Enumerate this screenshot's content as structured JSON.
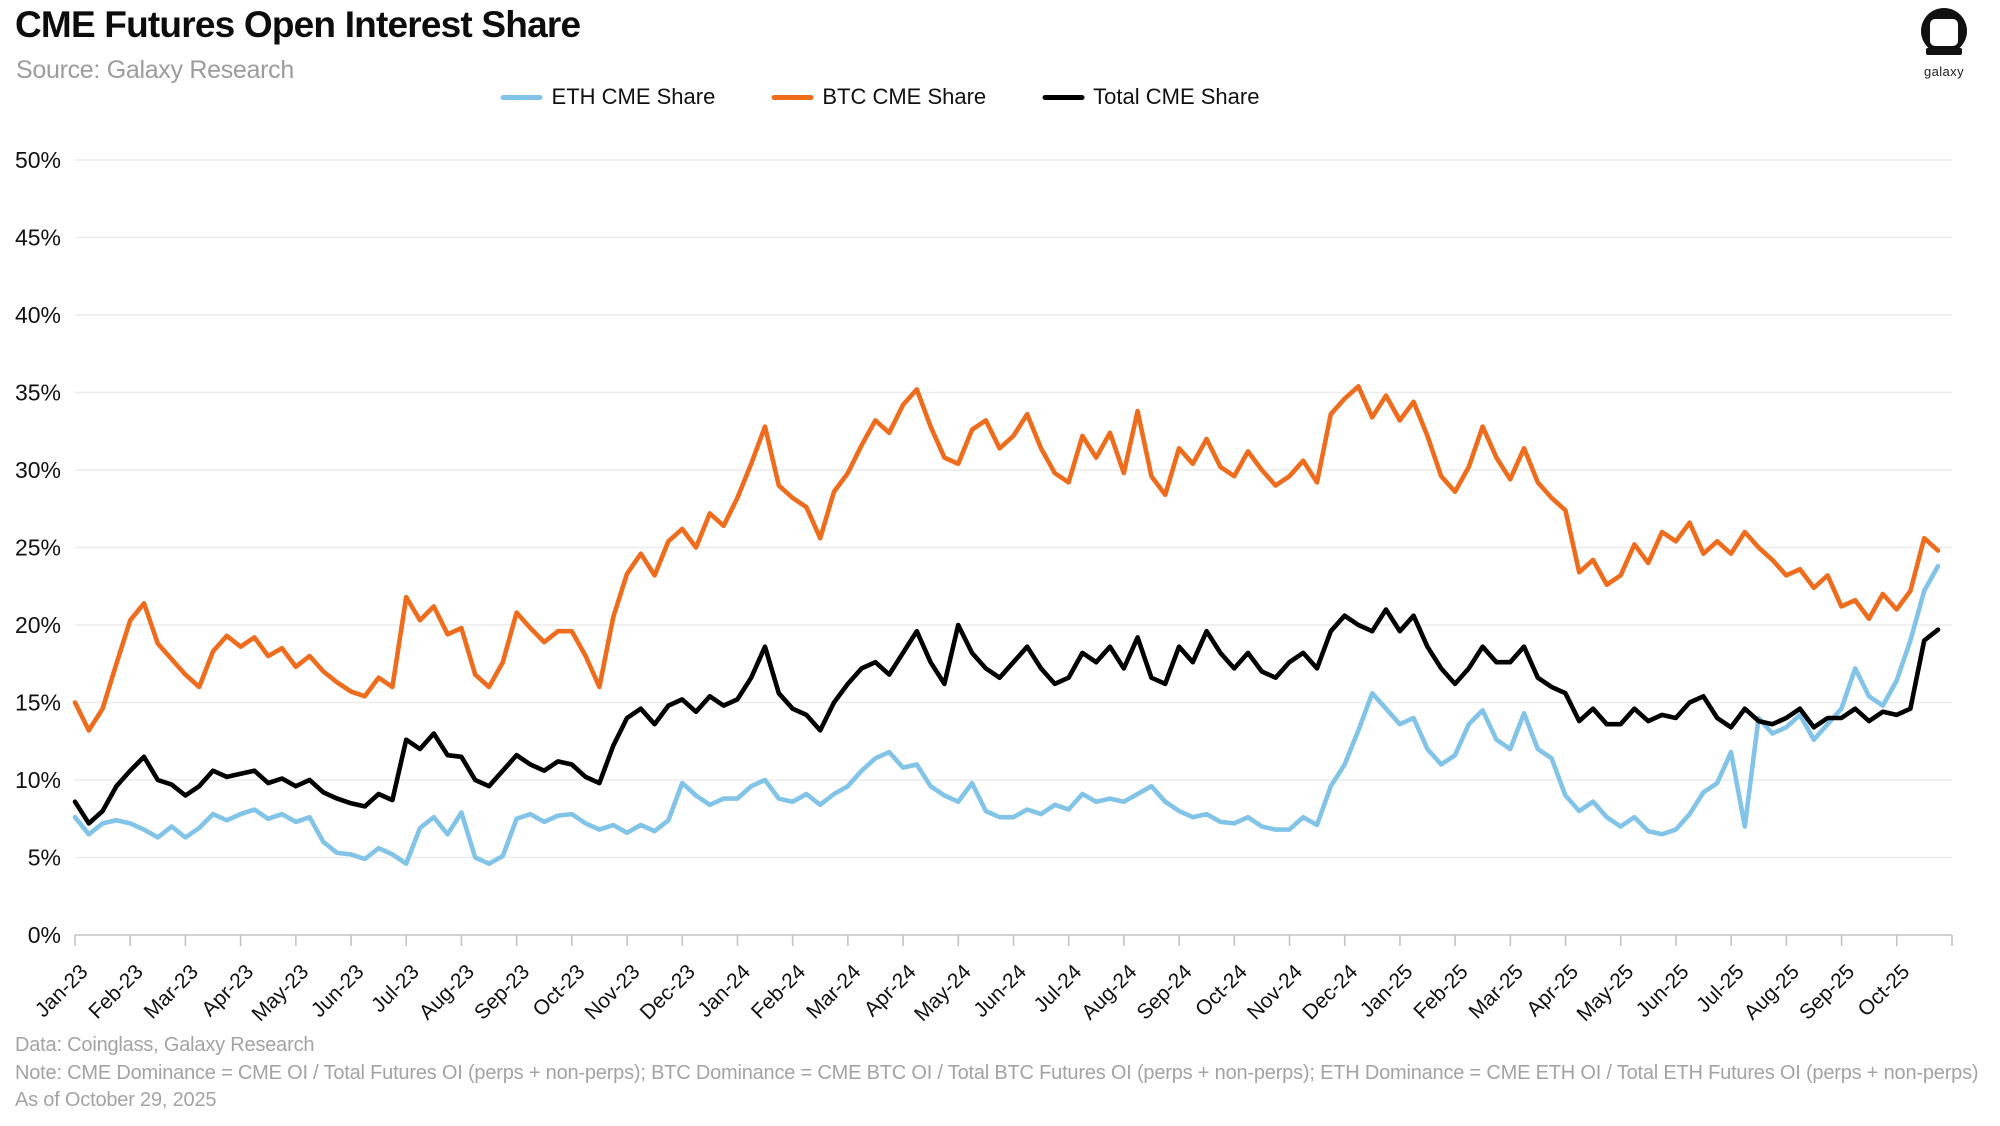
{
  "header": {
    "title": "CME Futures Open Interest Share",
    "source": "Source: Galaxy Research",
    "logo_text": "galaxy"
  },
  "footer": {
    "data_line": "Data: Coinglass, Galaxy Research",
    "note_line": "Note: CME Dominance = CME OI / Total Futures OI (perps + non-perps); BTC Dominance = CME BTC OI / Total BTC Futures OI (perps + non-perps); ETH Dominance = CME ETH OI / Total ETH Futures OI (perps + non-perps)",
    "as_of_line": "As of October 29, 2025"
  },
  "chart_data": {
    "type": "line",
    "title": "CME Futures Open Interest Share",
    "xlabel": "",
    "ylabel": "",
    "ylim": [
      0,
      50
    ],
    "grid": "horizontal",
    "legend_position": "top-center",
    "y_ticks": [
      "0%",
      "5%",
      "10%",
      "15%",
      "20%",
      "25%",
      "30%",
      "35%",
      "40%",
      "45%",
      "50%"
    ],
    "x_labels": [
      "Jan-23",
      "Feb-23",
      "Mar-23",
      "Apr-23",
      "May-23",
      "Jun-23",
      "Jul-23",
      "Aug-23",
      "Sep-23",
      "Oct-23",
      "Nov-23",
      "Dec-23",
      "Jan-24",
      "Feb-24",
      "Mar-24",
      "Apr-24",
      "May-24",
      "Jun-24",
      "Jul-24",
      "Aug-24",
      "Sep-24",
      "Oct-24",
      "Nov-24",
      "Dec-24",
      "Jan-25",
      "Feb-25",
      "Mar-25",
      "Apr-25",
      "May-25",
      "Jun-25",
      "Jul-25",
      "Aug-25",
      "Sep-25",
      "Oct-25"
    ],
    "sampling": "approx. weekly values (4 per month), Jan-2023 through Oct 29, 2025, in percent",
    "colors": {
      "eth": "#82C3E8",
      "btc": "#EE6C1C",
      "total": "#000000",
      "gridline": "#ececec",
      "axis": "#c4c4c4"
    },
    "series": [
      {
        "name": "ETH CME Share",
        "color": "#82C3E8",
        "values": [
          7.6,
          6.5,
          7.2,
          7.4,
          7.2,
          6.8,
          6.3,
          7.0,
          6.3,
          6.9,
          7.8,
          7.4,
          7.8,
          8.1,
          7.5,
          7.8,
          7.3,
          7.6,
          6.0,
          5.3,
          5.2,
          4.9,
          5.6,
          5.2,
          4.6,
          6.9,
          7.6,
          6.5,
          7.9,
          5.0,
          4.6,
          5.1,
          7.5,
          7.8,
          7.3,
          7.7,
          7.8,
          7.2,
          6.8,
          7.1,
          6.6,
          7.1,
          6.7,
          7.4,
          9.8,
          9.0,
          8.4,
          8.8,
          8.8,
          9.6,
          10.0,
          8.8,
          8.6,
          9.1,
          8.4,
          9.1,
          9.6,
          10.6,
          11.4,
          11.8,
          10.8,
          11.0,
          9.6,
          9.0,
          8.6,
          9.8,
          8.0,
          7.6,
          7.6,
          8.1,
          7.8,
          8.4,
          8.1,
          9.1,
          8.6,
          8.8,
          8.6,
          9.1,
          9.6,
          8.6,
          8.0,
          7.6,
          7.8,
          7.3,
          7.2,
          7.6,
          7.0,
          6.8,
          6.8,
          7.6,
          7.1,
          9.6,
          11.0,
          13.2,
          15.6,
          14.6,
          13.6,
          14.0,
          12.0,
          11.0,
          11.6,
          13.6,
          14.5,
          12.6,
          12.0,
          14.3,
          12.0,
          11.4,
          9.0,
          8.0,
          8.6,
          7.6,
          7.0,
          7.6,
          6.7,
          6.5,
          6.8,
          7.8,
          9.2,
          9.8,
          11.8,
          7.0,
          14.0,
          13.0,
          13.4,
          14.2,
          12.6,
          13.6,
          14.6,
          17.2,
          15.4,
          14.8,
          16.4,
          19.0,
          22.2,
          23.8
        ]
      },
      {
        "name": "BTC CME Share",
        "color": "#EE6C1C",
        "values": [
          15.0,
          13.2,
          14.6,
          17.5,
          20.3,
          21.4,
          18.8,
          17.8,
          16.8,
          16.0,
          18.3,
          19.3,
          18.6,
          19.2,
          18.0,
          18.5,
          17.3,
          18.0,
          17.0,
          16.3,
          15.7,
          15.4,
          16.6,
          16.0,
          21.8,
          20.3,
          21.2,
          19.4,
          19.8,
          16.8,
          16.0,
          17.6,
          20.8,
          19.8,
          18.9,
          19.6,
          19.6,
          18.0,
          16.0,
          20.5,
          23.3,
          24.6,
          23.2,
          25.4,
          26.2,
          25.0,
          27.2,
          26.4,
          28.2,
          30.4,
          32.8,
          29.0,
          28.2,
          27.6,
          25.6,
          28.6,
          29.8,
          31.6,
          33.2,
          32.4,
          34.2,
          35.2,
          32.8,
          30.8,
          30.4,
          32.6,
          33.2,
          31.4,
          32.2,
          33.6,
          31.4,
          29.8,
          29.2,
          32.2,
          30.8,
          32.4,
          29.8,
          33.8,
          29.6,
          28.4,
          31.4,
          30.4,
          32.0,
          30.2,
          29.6,
          31.2,
          30.0,
          29.0,
          29.6,
          30.6,
          29.2,
          33.6,
          34.6,
          35.4,
          33.4,
          34.8,
          33.2,
          34.4,
          32.2,
          29.6,
          28.6,
          30.2,
          32.8,
          30.8,
          29.4,
          31.4,
          29.2,
          28.2,
          27.4,
          23.4,
          24.2,
          22.6,
          23.2,
          25.2,
          24.0,
          26.0,
          25.4,
          26.6,
          24.6,
          25.4,
          24.6,
          26.0,
          25.0,
          24.2,
          23.2,
          23.6,
          22.4,
          23.2,
          21.2,
          21.6,
          20.4,
          22.0,
          21.0,
          22.2,
          25.6,
          24.8
        ]
      },
      {
        "name": "Total CME Share",
        "color": "#000000",
        "values": [
          8.6,
          7.2,
          8.0,
          9.6,
          10.6,
          11.5,
          10.0,
          9.7,
          9.0,
          9.6,
          10.6,
          10.2,
          10.4,
          10.6,
          9.8,
          10.1,
          9.6,
          10.0,
          9.2,
          8.8,
          8.5,
          8.3,
          9.1,
          8.7,
          12.6,
          12.0,
          13.0,
          11.6,
          11.5,
          10.0,
          9.6,
          10.6,
          11.6,
          11.0,
          10.6,
          11.2,
          11.0,
          10.2,
          9.8,
          12.2,
          14.0,
          14.6,
          13.6,
          14.8,
          15.2,
          14.4,
          15.4,
          14.8,
          15.2,
          16.6,
          18.6,
          15.6,
          14.6,
          14.2,
          13.2,
          15.0,
          16.2,
          17.2,
          17.6,
          16.8,
          18.2,
          19.6,
          17.6,
          16.2,
          20.0,
          18.2,
          17.2,
          16.6,
          17.6,
          18.6,
          17.2,
          16.2,
          16.6,
          18.2,
          17.6,
          18.6,
          17.2,
          19.2,
          16.6,
          16.2,
          18.6,
          17.6,
          19.6,
          18.2,
          17.2,
          18.2,
          17.0,
          16.6,
          17.6,
          18.2,
          17.2,
          19.6,
          20.6,
          20.0,
          19.6,
          21.0,
          19.6,
          20.6,
          18.6,
          17.2,
          16.2,
          17.2,
          18.6,
          17.6,
          17.6,
          18.6,
          16.6,
          16.0,
          15.6,
          13.8,
          14.6,
          13.6,
          13.6,
          14.6,
          13.8,
          14.2,
          14.0,
          15.0,
          15.4,
          14.0,
          13.4,
          14.6,
          13.8,
          13.6,
          14.0,
          14.6,
          13.4,
          14.0,
          14.0,
          14.6,
          13.8,
          14.4,
          14.2,
          14.6,
          19.0,
          19.7
        ]
      }
    ]
  }
}
